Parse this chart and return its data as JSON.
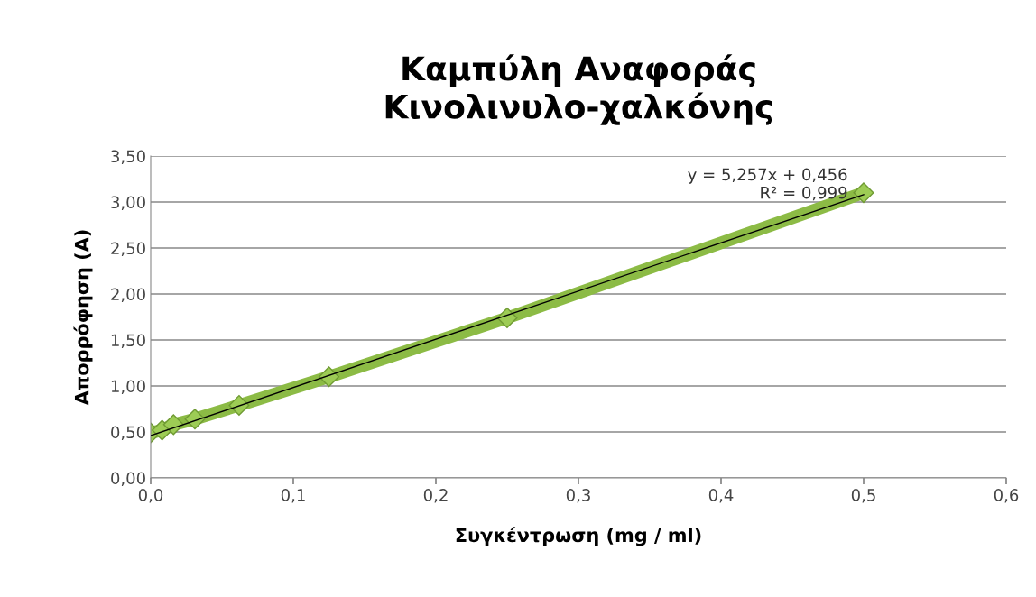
{
  "chart_data": {
    "type": "line",
    "title": "Καμπύλη Αναφοράς\nΚινολινυλο-χαλκόνης",
    "xlabel": "Συγκέντρωση (mg / ml)",
    "ylabel": "Απορρόφηση (A)",
    "series": [
      {
        "marker": "diamond",
        "color": "#8cbb45",
        "x": [
          0,
          0.008,
          0.016,
          0.031,
          0.062,
          0.125,
          0.25,
          0.5
        ],
        "values": [
          0.49,
          0.52,
          0.58,
          0.64,
          0.79,
          1.1,
          1.74,
          3.1
        ]
      },
      {
        "marker": "none",
        "color": "#000000",
        "x": [
          0,
          0.5
        ],
        "values": [
          0.46,
          3.08
        ]
      }
    ],
    "annotations": [
      "y = 5,257x + 0,456\nR² = 0,999"
    ],
    "xlim": [
      0,
      0.6
    ],
    "ylim": [
      0,
      3.5
    ],
    "xticks": [
      {
        "value": 0,
        "label": "0,0"
      },
      {
        "value": 0.1,
        "label": "0,1"
      },
      {
        "value": 0.2,
        "label": "0,2"
      },
      {
        "value": 0.3,
        "label": "0,3"
      },
      {
        "value": 0.4,
        "label": "0,4"
      },
      {
        "value": 0.5,
        "label": "0,5"
      },
      {
        "value": 0.6,
        "label": "0,6"
      }
    ],
    "yticks": [
      {
        "value": 0,
        "label": "0,00"
      },
      {
        "value": 0.5,
        "label": "0,50"
      },
      {
        "value": 1,
        "label": "1,00"
      },
      {
        "value": 1.5,
        "label": "1,50"
      },
      {
        "value": 2,
        "label": "2,00"
      },
      {
        "value": 2.5,
        "label": "2,50"
      },
      {
        "value": 3,
        "label": "3,00"
      },
      {
        "value": 3.5,
        "label": "3,50"
      }
    ],
    "grid": "y",
    "legend": false
  }
}
